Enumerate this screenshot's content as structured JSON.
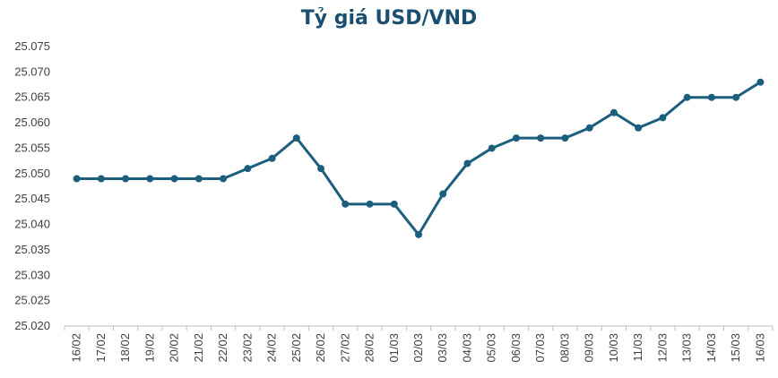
{
  "chart_data": {
    "type": "line",
    "title": "Tỷ giá USD/VND",
    "xlabel": "",
    "ylabel": "",
    "categories": [
      "16/02",
      "17/02",
      "18/02",
      "19/02",
      "20/02",
      "21/02",
      "22/02",
      "23/02",
      "24/02",
      "25/02",
      "26/02",
      "27/02",
      "28/02",
      "01/03",
      "02/03",
      "03/03",
      "04/03",
      "05/03",
      "06/03",
      "07/03",
      "08/03",
      "09/03",
      "10/03",
      "11/03",
      "12/03",
      "13/03",
      "14/03",
      "15/03",
      "16/03"
    ],
    "series": [
      {
        "values": [
          25049,
          25049,
          25049,
          25049,
          25049,
          25049,
          25049,
          25051,
          25053,
          25057,
          25051,
          25044,
          25044,
          25044,
          25038,
          25046,
          25052,
          25055,
          25057,
          25057,
          25057,
          25059,
          25062,
          25059,
          25061,
          25065,
          25065,
          25065,
          25068
        ],
        "color": "#1b5e7e"
      }
    ],
    "ylim": [
      25020,
      25075
    ],
    "yticks": [
      "25.020",
      "25.025",
      "25.030",
      "25.035",
      "25.040",
      "25.045",
      "25.050",
      "25.055",
      "25.060",
      "25.065",
      "25.070",
      "25.075"
    ],
    "grid": false,
    "legend": "none"
  }
}
